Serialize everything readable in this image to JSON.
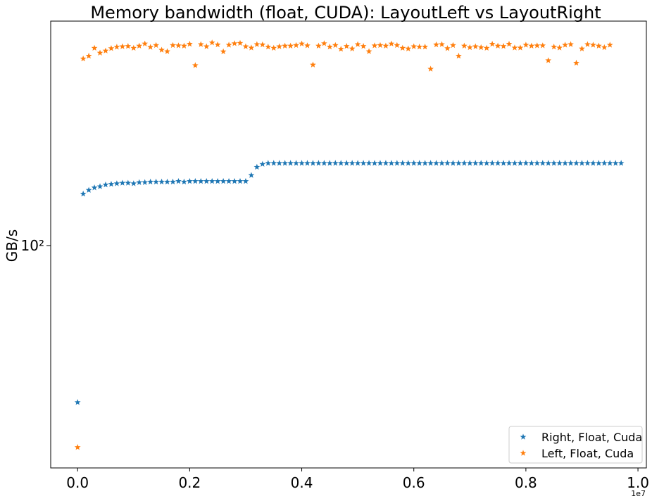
{
  "chart_data": {
    "type": "scatter",
    "title": "Memory bandwidth (float, CUDA):  LayoutLeft vs LayoutRight",
    "y_label": "GB/s",
    "x_offset_label": "1e7",
    "log_y": true,
    "legend": "lower right",
    "marker": "star",
    "xlim": [
      -480000,
      10150000
    ],
    "xticks": [
      {
        "value": 0,
        "label": "0.0"
      },
      {
        "value": 2000000,
        "label": "0.2"
      },
      {
        "value": 4000000,
        "label": "0.4"
      },
      {
        "value": 6000000,
        "label": "0.6"
      },
      {
        "value": 8000000,
        "label": "0.8"
      },
      {
        "value": 10000000,
        "label": "1.0"
      }
    ],
    "ylim": [
      11.9,
      857
    ],
    "yticks": [
      {
        "value": 100,
        "label": "10²"
      }
    ],
    "x": [
      0,
      100000,
      200000,
      300000,
      400000,
      500000,
      600000,
      700000,
      800000,
      900000,
      1000000,
      1100000,
      1200000,
      1300000,
      1400000,
      1500000,
      1600000,
      1700000,
      1800000,
      1900000,
      2000000,
      2100000,
      2200000,
      2300000,
      2400000,
      2500000,
      2600000,
      2700000,
      2800000,
      2900000,
      3000000,
      3100000,
      3200000,
      3300000,
      3400000,
      3500000,
      3600000,
      3700000,
      3800000,
      3900000,
      4000000,
      4100000,
      4200000,
      4300000,
      4400000,
      4500000,
      4600000,
      4700000,
      4800000,
      4900000,
      5000000,
      5100000,
      5200000,
      5300000,
      5400000,
      5500000,
      5600000,
      5700000,
      5800000,
      5900000,
      6000000,
      6100000,
      6200000,
      6300000,
      6400000,
      6500000,
      6600000,
      6700000,
      6800000,
      6900000,
      7000000,
      7100000,
      7200000,
      7300000,
      7400000,
      7500000,
      7600000,
      7700000,
      7800000,
      7900000,
      8000000,
      8100000,
      8200000,
      8300000,
      8400000,
      8500000,
      8600000,
      8700000,
      8800000,
      8900000,
      9000000,
      9100000,
      9200000,
      9300000,
      9400000,
      9500000,
      9600000,
      9700000
    ],
    "series": [
      {
        "name": "Right, Float, Cuda",
        "color": "#1f77b4",
        "values": [
          22.3,
          164,
          170,
          174,
          176,
          179,
          180,
          181,
          182,
          182,
          181,
          183,
          183,
          184,
          184,
          184,
          184,
          184,
          185,
          184,
          185,
          185,
          185,
          185,
          185,
          185,
          185,
          185,
          185,
          185,
          185,
          196,
          212,
          218,
          220,
          220,
          220,
          220,
          220,
          220,
          220,
          220,
          220,
          220,
          220,
          220,
          220,
          220,
          220,
          220,
          220,
          220,
          220,
          220,
          220,
          220,
          220,
          220,
          220,
          220,
          220,
          220,
          220,
          220,
          220,
          220,
          220,
          220,
          220,
          220,
          220,
          220,
          220,
          220,
          220,
          220,
          220,
          220,
          220,
          220,
          220,
          220,
          220,
          220,
          220,
          220,
          220,
          220,
          220,
          220,
          220,
          220,
          220,
          220,
          220,
          220,
          220,
          220
        ]
      },
      {
        "name": "Left, Float, Cuda",
        "color": "#ff7f0e",
        "values": [
          14.5,
          598,
          614,
          662,
          632,
          645,
          660,
          669,
          672,
          674,
          662,
          676,
          690,
          668,
          680,
          650,
          641,
          680,
          678,
          676,
          688,
          561,
          686,
          672,
          697,
          684,
          640,
          682,
          692,
          694,
          672,
          664,
          686,
          684,
          670,
          662,
          672,
          676,
          676,
          680,
          690,
          678,
          564,
          676,
          692,
          670,
          680,
          656,
          674,
          658,
          686,
          674,
          641,
          678,
          680,
          676,
          690,
          680,
          662,
          658,
          672,
          670,
          670,
          542,
          684,
          686,
          660,
          680,
          614,
          676,
          666,
          672,
          666,
          662,
          688,
          676,
          674,
          688,
          664,
          664,
          682,
          676,
          678,
          678,
          588,
          670,
          664,
          682,
          686,
          574,
          658,
          686,
          682,
          676,
          666,
          682,
          null,
          null
        ]
      }
    ]
  }
}
